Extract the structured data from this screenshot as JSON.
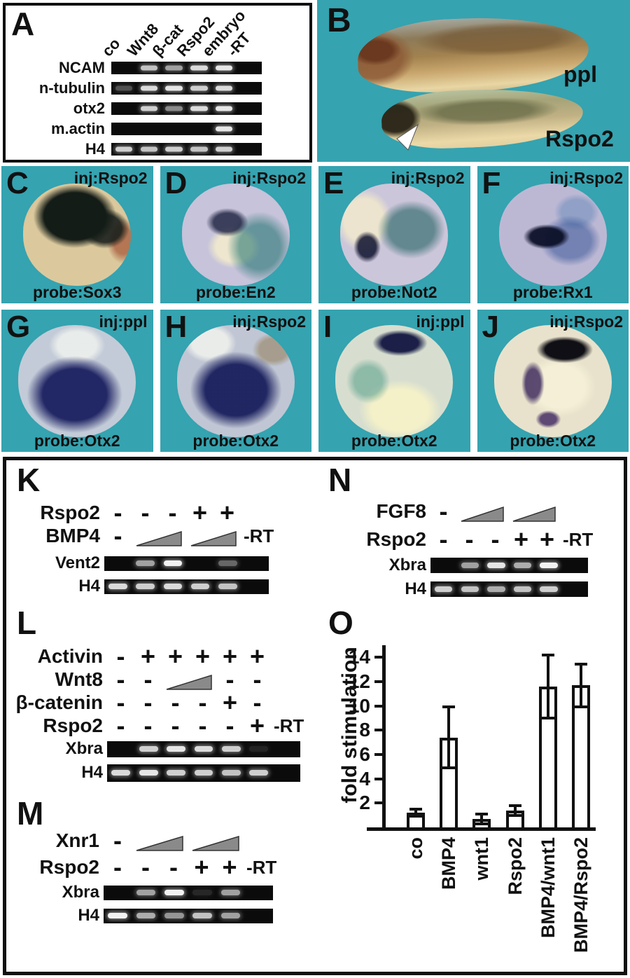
{
  "colors": {
    "cyan_bg": "#35a3b0",
    "gel_black": "#0b0b0b",
    "band_white": "#f2f2f2",
    "triangle_gray": "#8a8a8a",
    "bar_fill": "#ffffff",
    "bar_stroke": "#111111"
  },
  "panel_a": {
    "letter": "A",
    "lanes": [
      "co",
      "Wnt8",
      "β-cat",
      "Rspo2",
      "embryo",
      "-RT"
    ],
    "rows": [
      {
        "label": "NCAM",
        "bands": [
          0,
          0.8,
          0.65,
          0.9,
          0.95,
          0
        ]
      },
      {
        "label": "n-tubulin",
        "bands": [
          0.3,
          0.9,
          0.95,
          0.85,
          0.9,
          0
        ]
      },
      {
        "label": "otx2",
        "bands": [
          0,
          0.85,
          0.55,
          0.9,
          0.95,
          0
        ]
      },
      {
        "label": "m.actin",
        "bands": [
          0,
          0,
          0,
          0,
          0.95,
          0
        ]
      },
      {
        "label": "H4",
        "bands": [
          0.85,
          0.8,
          0.85,
          0.8,
          0.85,
          0
        ]
      }
    ]
  },
  "panel_b": {
    "letter": "B",
    "label_top": "ppl",
    "label_bottom": "Rspo2"
  },
  "embryo_panels": [
    {
      "letter": "C",
      "inj": "inj:Rspo2",
      "probe": "probe:Sox3"
    },
    {
      "letter": "D",
      "inj": "inj:Rspo2",
      "probe": "probe:En2"
    },
    {
      "letter": "E",
      "inj": "inj:Rspo2",
      "probe": "probe:Not2"
    },
    {
      "letter": "F",
      "inj": "inj:Rspo2",
      "probe": "probe:Rx1"
    },
    {
      "letter": "G",
      "inj": "inj:ppl",
      "probe": "probe:Otx2"
    },
    {
      "letter": "H",
      "inj": "inj:Rspo2",
      "probe": "probe:Otx2"
    },
    {
      "letter": "I",
      "inj": "inj:ppl",
      "probe": "probe:Otx2"
    },
    {
      "letter": "J",
      "inj": "inj:Rspo2",
      "probe": "probe:Otx2"
    }
  ],
  "panel_k": {
    "letter": "K",
    "treatment_rows": [
      {
        "label": "Rspo2",
        "cells": [
          {
            "s": "-"
          },
          {
            "s": "-"
          },
          {
            "s": "-"
          },
          {
            "s": "+"
          },
          {
            "s": "+"
          }
        ]
      },
      {
        "label": "BMP4",
        "cells": [
          {
            "s": "-"
          },
          {
            "s": "tri",
            "span": 2
          },
          {
            "s": "tri",
            "span": 2
          }
        ],
        "rt": "-RT"
      }
    ],
    "gels": [
      {
        "label": "Vent2",
        "bands": [
          0,
          0.65,
          1,
          0,
          0.4,
          0
        ]
      },
      {
        "label": "H4",
        "bands": [
          0.9,
          0.85,
          0.9,
          0.85,
          0.8,
          0
        ]
      }
    ]
  },
  "panel_l": {
    "letter": "L",
    "treatment_rows": [
      {
        "label": "Activin",
        "cells": [
          {
            "s": "-"
          },
          {
            "s": "+"
          },
          {
            "s": "+"
          },
          {
            "s": "+"
          },
          {
            "s": "+"
          },
          {
            "s": "+"
          }
        ]
      },
      {
        "label": "Wnt8",
        "cells": [
          {
            "s": "-"
          },
          {
            "s": "-"
          },
          {
            "s": "tri",
            "span": 2
          },
          {
            "s": "-"
          },
          {
            "s": "-"
          }
        ]
      },
      {
        "label": "β-catenin",
        "cells": [
          {
            "s": "-"
          },
          {
            "s": "-"
          },
          {
            "s": "-"
          },
          {
            "s": "-"
          },
          {
            "s": "+"
          },
          {
            "s": "-"
          }
        ]
      },
      {
        "label": "Rspo2",
        "cells": [
          {
            "s": "-"
          },
          {
            "s": "-"
          },
          {
            "s": "-"
          },
          {
            "s": "-"
          },
          {
            "s": "-"
          },
          {
            "s": "+"
          }
        ],
        "rt": "-RT"
      }
    ],
    "gels": [
      {
        "label": "Xbra",
        "bands": [
          0,
          0.85,
          0.95,
          0.9,
          0.85,
          0.1,
          0
        ]
      },
      {
        "label": "H4",
        "bands": [
          0.9,
          0.95,
          0.85,
          0.85,
          0.8,
          0.85,
          0
        ]
      }
    ]
  },
  "panel_m": {
    "letter": "M",
    "treatment_rows": [
      {
        "label": "Xnr1",
        "cells": [
          {
            "s": "-"
          },
          {
            "s": "tri",
            "span": 2
          },
          {
            "s": "tri",
            "span": 2
          }
        ]
      },
      {
        "label": "Rspo2",
        "cells": [
          {
            "s": "-"
          },
          {
            "s": "-"
          },
          {
            "s": "-"
          },
          {
            "s": "+"
          },
          {
            "s": "+"
          }
        ],
        "rt": "-RT"
      }
    ],
    "gels": [
      {
        "label": "Xbra",
        "bands": [
          0,
          0.65,
          1,
          0.12,
          0.65,
          0
        ]
      },
      {
        "label": "H4",
        "bands": [
          1,
          0.7,
          0.6,
          0.8,
          0.65,
          0
        ]
      }
    ]
  },
  "panel_n": {
    "letter": "N",
    "treatment_rows": [
      {
        "label": "FGF8",
        "cells": [
          {
            "s": "-"
          },
          {
            "s": "tri",
            "span": 2
          },
          {
            "s": "tri",
            "span": 2
          }
        ]
      },
      {
        "label": "Rspo2",
        "cells": [
          {
            "s": "-"
          },
          {
            "s": "-"
          },
          {
            "s": "-"
          },
          {
            "s": "+"
          },
          {
            "s": "+"
          }
        ],
        "rt": "-RT"
      }
    ],
    "gels": [
      {
        "label": "Xbra",
        "bands": [
          0,
          0.65,
          0.95,
          0.7,
          1,
          0
        ]
      },
      {
        "label": "H4",
        "bands": [
          0.85,
          0.8,
          0.7,
          0.8,
          0.85,
          0
        ]
      }
    ]
  },
  "panel_o": {
    "letter": "O"
  },
  "chart_data": {
    "type": "bar",
    "title": "",
    "xlabel": "",
    "ylabel": "fold stimulation",
    "categories": [
      "co",
      "BMP4",
      "wnt1",
      "Rspo2",
      "BMP4/wnt1",
      "BMP4/Rspo2"
    ],
    "values": [
      1.2,
      7.4,
      0.7,
      1.4,
      11.6,
      11.7
    ],
    "errors": [
      0.3,
      2.5,
      0.4,
      0.4,
      2.6,
      1.75
    ],
    "yticks": [
      2,
      4,
      6,
      8,
      10,
      12,
      14
    ],
    "ylim": [
      0,
      15
    ],
    "grid": false,
    "legend": "none",
    "bar_fill": "#ffffff",
    "bar_stroke": "#111111"
  }
}
